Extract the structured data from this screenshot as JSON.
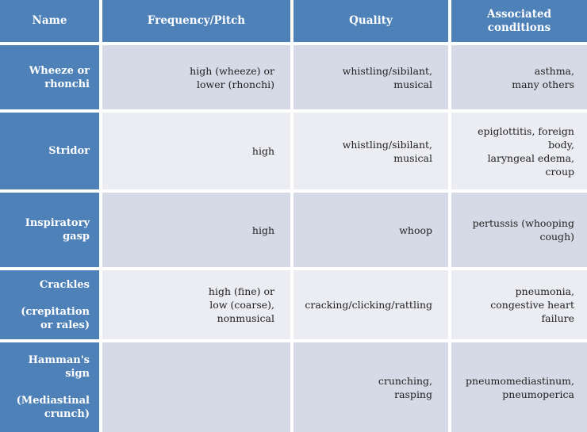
{
  "colors": {
    "accent_blue": "#4f81b9",
    "band_dark": "#d6dae6",
    "band_light": "#ecedf2",
    "grid_line": "#ffffff",
    "header_text": "#ffffff",
    "body_text": "#212121"
  },
  "table": {
    "headers": [
      "Name",
      "Frequency/Pitch",
      "Quality",
      "Associated\nconditions"
    ],
    "rows": [
      {
        "name": "Wheeze or\nrhonchi",
        "frequency": "high (wheeze) or\nlower (rhonchi)",
        "quality": "whistling/sibilant,\nmusical",
        "conditions": "asthma,\nmany others"
      },
      {
        "name": "Stridor",
        "frequency": "high",
        "quality": "whistling/sibilant,\nmusical",
        "conditions": "epiglottitis, foreign\nbody,\nlaryngeal edema,\ncroup"
      },
      {
        "name": "Inspiratory\ngasp",
        "frequency": "high",
        "quality": "whoop",
        "conditions": "pertussis (whooping\ncough)"
      },
      {
        "name": "Crackles\n\n(crepitation\nor rales)",
        "frequency": "high (fine) or\nlow (coarse),\nnonmusical",
        "quality": "cracking/clicking/rattling",
        "conditions": "pneumonia,\ncongestive heart\nfailure"
      },
      {
        "name": "Hamman's\nsign\n\n(Mediastinal\ncrunch)",
        "frequency": "",
        "quality": "crunching,\nrasping",
        "conditions": "pneumomediastinum,\npneumoperica"
      }
    ]
  }
}
